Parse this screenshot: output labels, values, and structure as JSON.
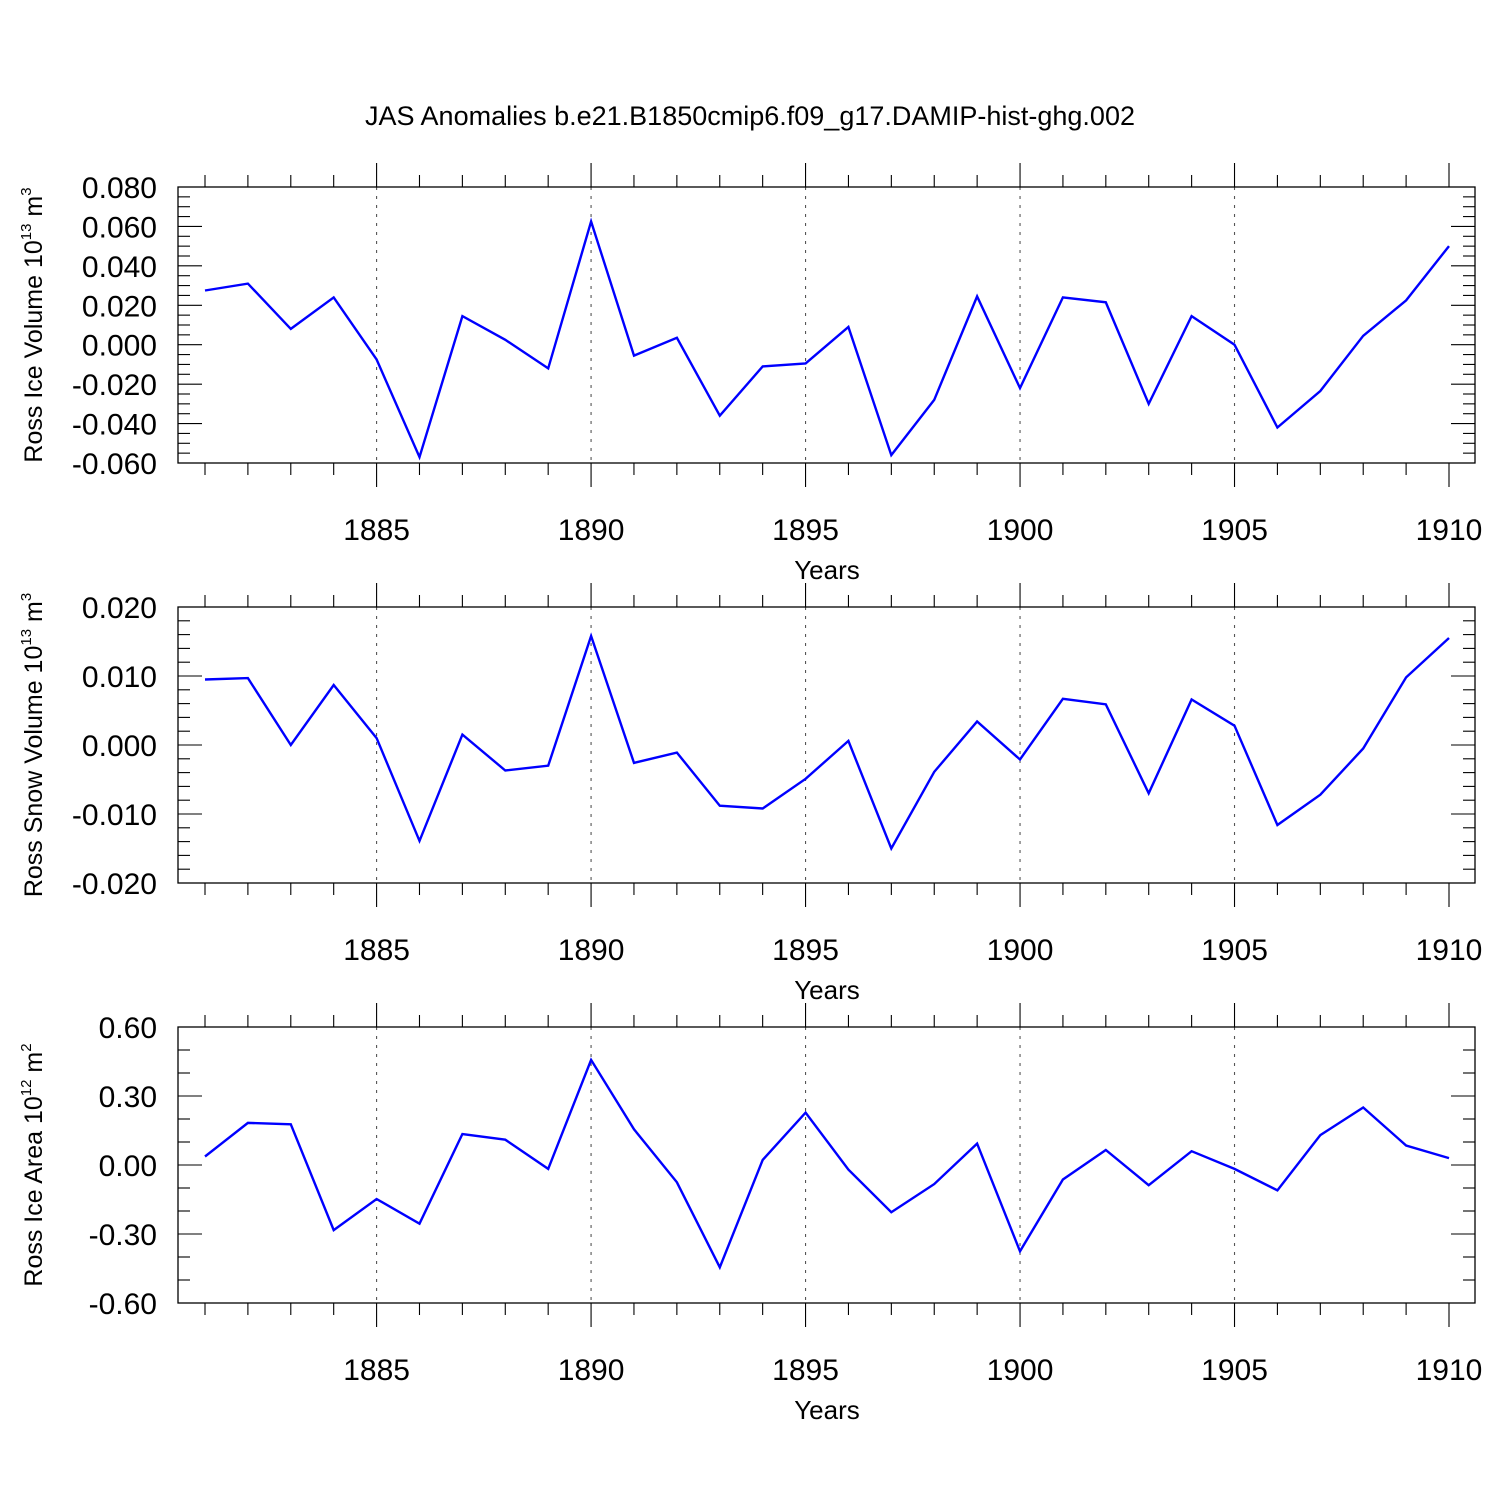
{
  "figure": {
    "title": "JAS Anomalies b.e21.B1850cmip6.f09_g17.DAMIP-hist-ghg.002",
    "line_color": "#0000ff",
    "grid_color": "#555555"
  },
  "chart_data": [
    {
      "type": "line",
      "title": "",
      "xlabel": "Years",
      "ylabel": {
        "main": "Ross Ice Volume 10",
        "exp": "13",
        "unit": " m",
        "unit_exp": "3"
      },
      "xlim": [
        1881,
        1910
      ],
      "ylim": [
        -0.06,
        0.08
      ],
      "x_ticks": [
        1885,
        1890,
        1895,
        1900,
        1905,
        1910
      ],
      "x_tick_labels": [
        "1885",
        "1890",
        "1895",
        "1900",
        "1905",
        "1910"
      ],
      "y_ticks": [
        0.08,
        0.06,
        0.04,
        0.02,
        0.0,
        -0.02,
        -0.04,
        -0.06
      ],
      "y_tick_labels": [
        "0.080",
        "0.060",
        "0.040",
        "0.020",
        "0.000",
        "-0.020",
        "-0.040",
        "-0.060"
      ],
      "y_minor_step": 0.005,
      "grid": "vertical dashed at major x ticks",
      "x": [
        1881,
        1882,
        1883,
        1884,
        1885,
        1886,
        1887,
        1888,
        1889,
        1890,
        1891,
        1892,
        1893,
        1894,
        1895,
        1896,
        1897,
        1898,
        1899,
        1900,
        1901,
        1902,
        1903,
        1904,
        1905,
        1906,
        1907,
        1908,
        1909,
        1910
      ],
      "series": [
        {
          "values": [
            0.0275,
            0.031,
            0.008,
            0.024,
            -0.0075,
            -0.057,
            0.0145,
            0.0025,
            -0.012,
            0.0625,
            -0.0055,
            0.0035,
            -0.036,
            -0.011,
            -0.0095,
            0.009,
            -0.056,
            -0.028,
            0.0245,
            -0.022,
            0.024,
            0.0215,
            -0.03,
            0.0145,
            0.0,
            -0.042,
            -0.0235,
            0.0045,
            0.0225,
            0.05
          ]
        }
      ]
    },
    {
      "type": "line",
      "title": "",
      "xlabel": "Years",
      "ylabel": {
        "main": "Ross Snow Volume 10",
        "exp": "13",
        "unit": " m",
        "unit_exp": "3"
      },
      "xlim": [
        1881,
        1910
      ],
      "ylim": [
        -0.02,
        0.02
      ],
      "x_ticks": [
        1885,
        1890,
        1895,
        1900,
        1905,
        1910
      ],
      "x_tick_labels": [
        "1885",
        "1890",
        "1895",
        "1900",
        "1905",
        "1910"
      ],
      "y_ticks": [
        0.02,
        0.01,
        0.0,
        -0.01,
        -0.02
      ],
      "y_tick_labels": [
        "0.020",
        "0.010",
        "0.000",
        "-0.010",
        "-0.020"
      ],
      "y_minor_step": 0.002,
      "grid": "vertical dashed at major x ticks",
      "x": [
        1881,
        1882,
        1883,
        1884,
        1885,
        1886,
        1887,
        1888,
        1889,
        1890,
        1891,
        1892,
        1893,
        1894,
        1895,
        1896,
        1897,
        1898,
        1899,
        1900,
        1901,
        1902,
        1903,
        1904,
        1905,
        1906,
        1907,
        1908,
        1909,
        1910
      ],
      "series": [
        {
          "values": [
            0.0095,
            0.0097,
            0.0,
            0.0087,
            0.001,
            -0.0139,
            0.0015,
            -0.0037,
            -0.003,
            0.0158,
            -0.0026,
            -0.0011,
            -0.0088,
            -0.0092,
            -0.0049,
            0.0006,
            -0.015,
            -0.0039,
            0.0034,
            -0.0021,
            0.0067,
            0.0059,
            -0.007,
            0.0066,
            0.0028,
            -0.0116,
            -0.0072,
            -0.0005,
            0.0098,
            0.0155
          ]
        }
      ]
    },
    {
      "type": "line",
      "title": "",
      "xlabel": "Years",
      "ylabel": {
        "main": "Ross Ice Area 10",
        "exp": "12",
        "unit": " m",
        "unit_exp": "2"
      },
      "xlim": [
        1881,
        1910
      ],
      "ylim": [
        -0.6,
        0.6
      ],
      "x_ticks": [
        1885,
        1890,
        1895,
        1900,
        1905,
        1910
      ],
      "x_tick_labels": [
        "1885",
        "1890",
        "1895",
        "1900",
        "1905",
        "1910"
      ],
      "y_ticks": [
        0.6,
        0.3,
        0.0,
        -0.3,
        -0.6
      ],
      "y_tick_labels": [
        "0.60",
        "0.30",
        "0.00",
        "-0.30",
        "-0.60"
      ],
      "y_minor_step": 0.1,
      "grid": "vertical dashed at major x ticks",
      "x": [
        1881,
        1882,
        1883,
        1884,
        1885,
        1886,
        1887,
        1888,
        1889,
        1890,
        1891,
        1892,
        1893,
        1894,
        1895,
        1896,
        1897,
        1898,
        1899,
        1900,
        1901,
        1902,
        1903,
        1904,
        1905,
        1906,
        1907,
        1908,
        1909,
        1910
      ],
      "series": [
        {
          "values": [
            0.037,
            0.183,
            0.177,
            -0.283,
            -0.148,
            -0.255,
            0.135,
            0.11,
            -0.017,
            0.457,
            0.155,
            -0.075,
            -0.445,
            0.022,
            0.228,
            -0.02,
            -0.205,
            -0.083,
            0.093,
            -0.375,
            -0.063,
            0.065,
            -0.088,
            0.06,
            -0.017,
            -0.11,
            0.13,
            0.25,
            0.085,
            0.03
          ]
        }
      ]
    }
  ]
}
